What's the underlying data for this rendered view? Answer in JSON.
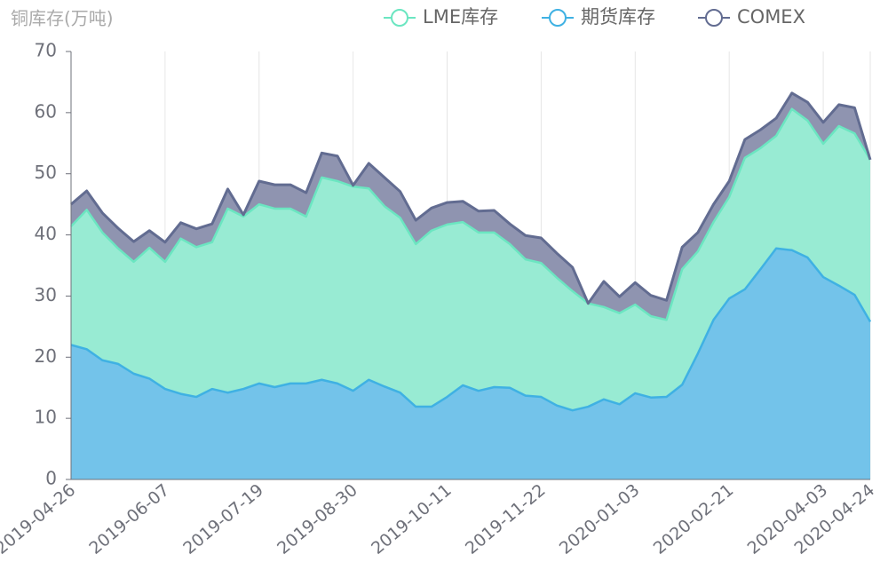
{
  "chart_data": {
    "type": "stacked_area",
    "y_axis_label": "铜库存(万吨)",
    "categories": [
      "2019-04-26",
      null,
      null,
      null,
      null,
      null,
      "2019-06-07",
      null,
      null,
      null,
      null,
      null,
      "2019-07-19",
      null,
      null,
      null,
      null,
      null,
      "2019-08-30",
      null,
      null,
      null,
      null,
      null,
      "2019-10-11",
      null,
      null,
      null,
      null,
      null,
      "2019-11-22",
      null,
      null,
      null,
      null,
      null,
      "2020-01-03",
      null,
      null,
      null,
      null,
      null,
      "2020-02-21",
      null,
      null,
      null,
      null,
      null,
      "2020-04-03",
      null,
      null,
      "2020-04-24"
    ],
    "series": [
      {
        "name": "期货库存",
        "color": "#3fb1e3",
        "fill": "#73c3ea",
        "values": [
          22.0,
          21.3,
          19.5,
          18.9,
          17.3,
          16.5,
          14.8,
          14.0,
          13.5,
          14.8,
          14.2,
          14.8,
          15.7,
          15.1,
          15.7,
          15.7,
          16.3,
          15.7,
          14.5,
          16.3,
          15.2,
          14.2,
          11.9,
          11.9,
          13.5,
          15.4,
          14.5,
          15.1,
          15.0,
          13.7,
          13.5,
          12.1,
          11.3,
          11.9,
          13.1,
          12.3,
          14.1,
          13.4,
          13.5,
          15.5,
          20.6,
          26.1,
          29.6,
          31.1,
          34.4,
          37.8,
          37.5,
          36.3,
          33.1,
          31.7,
          30.2,
          25.8
        ]
      },
      {
        "name": "LME库存",
        "color": "#6be6c1",
        "fill": "#98ebd3",
        "values": [
          19.4,
          22.8,
          20.9,
          18.9,
          18.3,
          21.4,
          20.8,
          25.4,
          24.5,
          24.0,
          30.1,
          28.2,
          29.3,
          29.2,
          28.6,
          27.3,
          33.1,
          33.1,
          33.4,
          31.3,
          29.5,
          28.6,
          26.6,
          28.8,
          28.2,
          26.7,
          25.9,
          25.3,
          23.5,
          22.3,
          21.9,
          20.9,
          19.5,
          16.9,
          15.1,
          14.9,
          14.5,
          13.3,
          12.6,
          18.9,
          16.7,
          16.0,
          16.6,
          21.5,
          19.8,
          18.4,
          23.1,
          22.4,
          21.8,
          26.1,
          26.4,
          26.5
        ]
      },
      {
        "name": "COMEX",
        "color": "#626c91",
        "fill": "#8f94b0",
        "values": [
          3.6,
          3.1,
          3.2,
          3.3,
          3.3,
          2.8,
          3.2,
          2.6,
          3.0,
          3.0,
          3.2,
          0.3,
          3.8,
          3.9,
          3.9,
          3.9,
          4.0,
          4.1,
          0.2,
          4.1,
          4.7,
          4.3,
          3.9,
          3.7,
          3.6,
          3.4,
          3.5,
          3.6,
          3.3,
          3.9,
          4.1,
          4.0,
          3.9,
          0.0,
          4.2,
          2.7,
          3.6,
          3.4,
          3.2,
          3.6,
          3.1,
          2.9,
          2.6,
          3.0,
          3.0,
          2.9,
          2.6,
          3.0,
          3.5,
          3.5,
          4.2,
          0.0
        ]
      }
    ],
    "ylim": [
      0,
      70
    ],
    "yticks": [
      0,
      10,
      20,
      30,
      40,
      50,
      60,
      70
    ],
    "grid": true
  }
}
